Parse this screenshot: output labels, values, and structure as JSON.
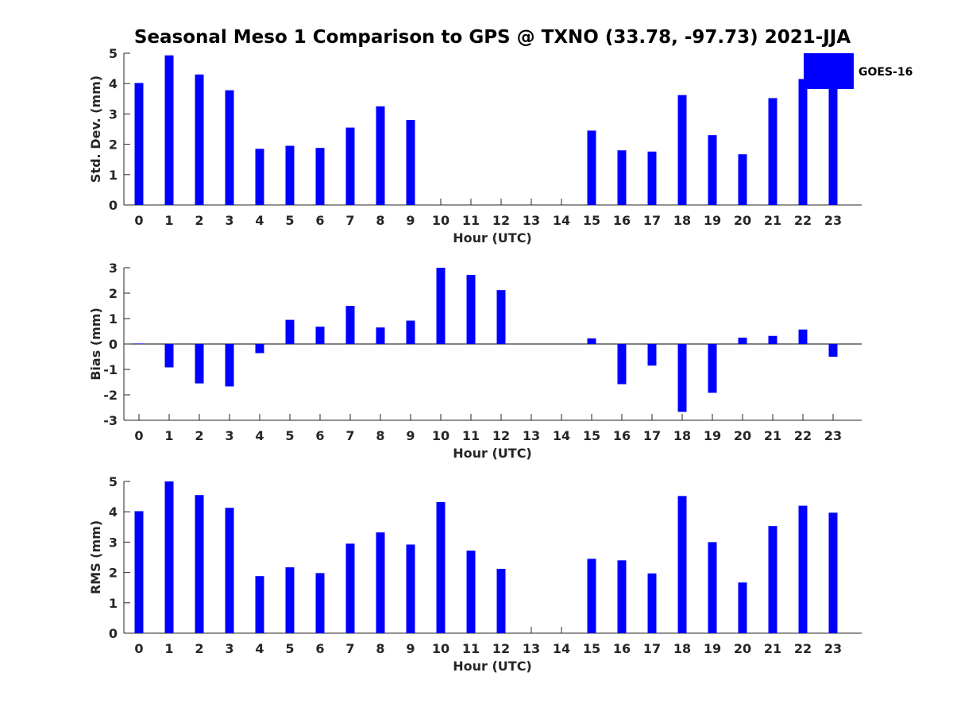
{
  "figure": {
    "title": "Seasonal Meso 1 Comparison to GPS @ TXNO (33.78, -97.73) 2021-JJA"
  },
  "legend": {
    "label": "GOES-16",
    "color": "#0000ff"
  },
  "chart_data": [
    {
      "type": "bar",
      "panel": "std",
      "ylabel": "Std. Dev. (mm)",
      "xlabel": "Hour (UTC)",
      "ylim": [
        0,
        5
      ],
      "yticks": [
        0,
        1,
        2,
        3,
        4,
        5
      ],
      "categories": [
        0,
        1,
        2,
        3,
        4,
        5,
        6,
        7,
        8,
        9,
        10,
        11,
        12,
        13,
        14,
        15,
        16,
        17,
        18,
        19,
        20,
        21,
        22,
        23
      ],
      "series": [
        {
          "name": "GOES-16",
          "color": "#0000ff",
          "values": [
            4.02,
            4.93,
            4.3,
            3.78,
            1.85,
            1.95,
            1.88,
            2.55,
            3.25,
            2.8,
            null,
            null,
            null,
            null,
            null,
            2.45,
            1.8,
            1.76,
            3.62,
            2.3,
            1.67,
            3.52,
            4.15,
            3.97
          ]
        }
      ],
      "grid": false,
      "legend": "top-right"
    },
    {
      "type": "bar",
      "panel": "bias",
      "ylabel": "Bias (mm)",
      "xlabel": "Hour (UTC)",
      "ylim": [
        -3,
        3
      ],
      "yticks": [
        -3,
        -2,
        -1,
        0,
        1,
        2,
        3
      ],
      "categories": [
        0,
        1,
        2,
        3,
        4,
        5,
        6,
        7,
        8,
        9,
        10,
        11,
        12,
        13,
        14,
        15,
        16,
        17,
        18,
        19,
        20,
        21,
        22,
        23
      ],
      "series": [
        {
          "name": "GOES-16",
          "color": "#0000ff",
          "values": [
            0.02,
            -0.92,
            -1.55,
            -1.67,
            -0.36,
            0.95,
            0.68,
            1.5,
            0.65,
            0.92,
            3.0,
            2.72,
            2.12,
            null,
            null,
            0.22,
            -1.58,
            -0.85,
            -2.67,
            -1.92,
            0.25,
            0.32,
            0.57,
            -0.5
          ]
        }
      ],
      "grid": false
    },
    {
      "type": "bar",
      "panel": "rms",
      "ylabel": "RMS (mm)",
      "xlabel": "Hour (UTC)",
      "ylim": [
        0,
        5
      ],
      "yticks": [
        0,
        1,
        2,
        3,
        4,
        5
      ],
      "categories": [
        0,
        1,
        2,
        3,
        4,
        5,
        6,
        7,
        8,
        9,
        10,
        11,
        12,
        13,
        14,
        15,
        16,
        17,
        18,
        19,
        20,
        21,
        22,
        23
      ],
      "series": [
        {
          "name": "GOES-16",
          "color": "#0000ff",
          "values": [
            4.02,
            5.0,
            4.55,
            4.13,
            1.88,
            2.17,
            1.98,
            2.95,
            3.32,
            2.92,
            4.32,
            2.72,
            2.12,
            null,
            null,
            2.45,
            2.4,
            1.97,
            4.52,
            3.0,
            1.67,
            3.53,
            4.2,
            3.97
          ]
        }
      ],
      "grid": false
    }
  ]
}
